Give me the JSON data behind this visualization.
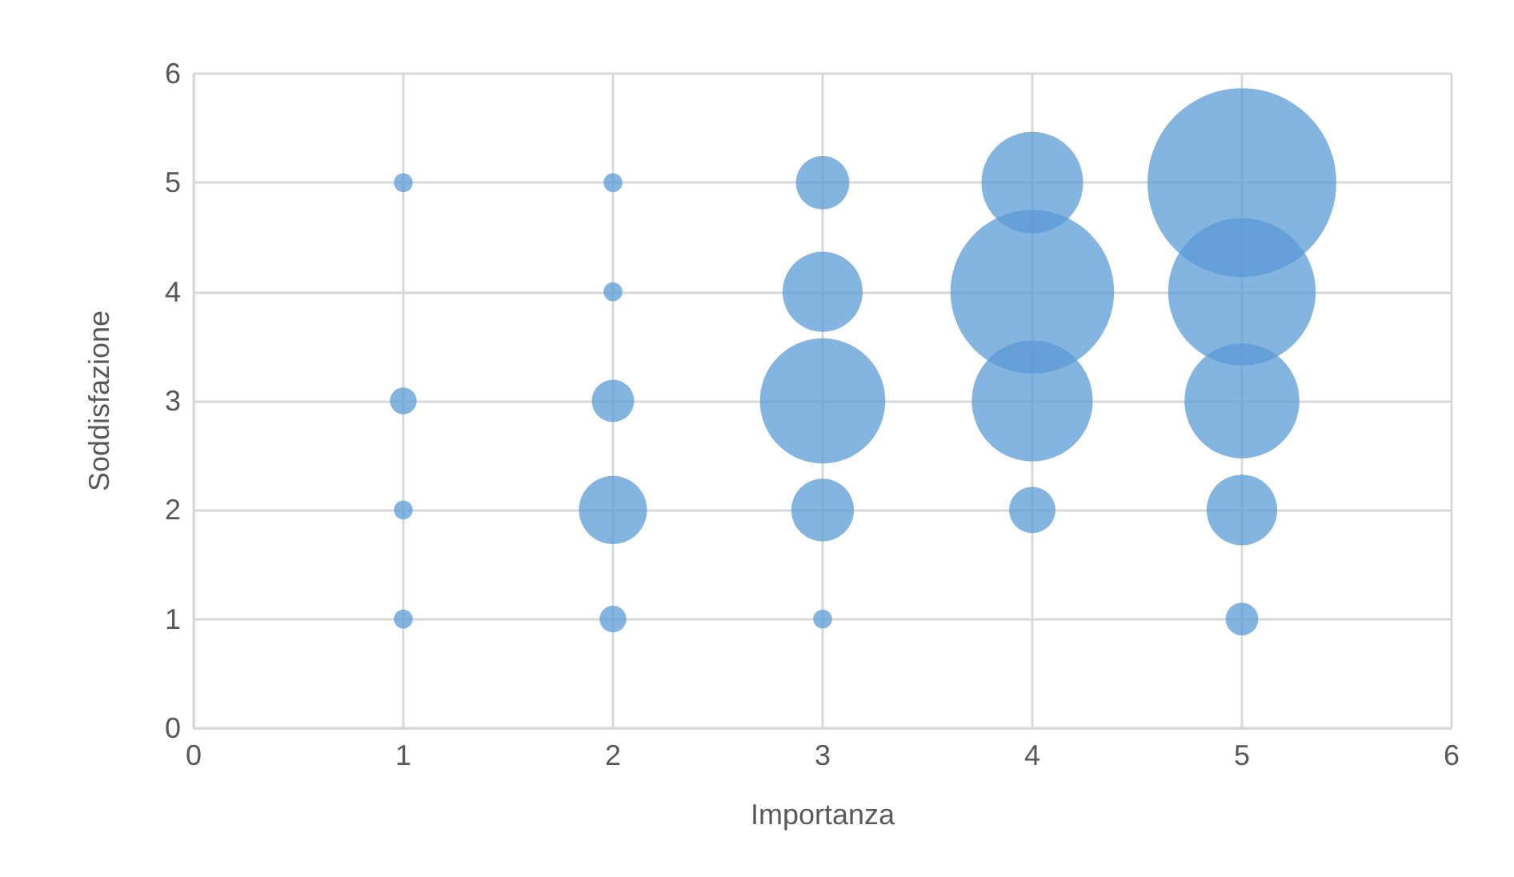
{
  "chart_data": {
    "type": "bubble",
    "xlabel": "Importanza",
    "ylabel": "Soddisfazione",
    "x": [
      1,
      1,
      1,
      1,
      2,
      2,
      2,
      2,
      2,
      3,
      3,
      3,
      3,
      3,
      4,
      4,
      4,
      4,
      5,
      5,
      5,
      5,
      5
    ],
    "values": [
      5,
      3,
      2,
      1,
      5,
      4,
      3,
      2,
      1,
      5,
      4,
      3,
      2,
      1,
      5,
      4,
      3,
      2,
      5,
      4,
      3,
      2,
      1
    ],
    "sizes": [
      0.01,
      0.02,
      0.01,
      0.01,
      0.01,
      0.01,
      0.05,
      0.13,
      0.02,
      0.08,
      0.18,
      0.44,
      0.11,
      0.01,
      0.29,
      0.75,
      0.41,
      0.06,
      1,
      0.61,
      0.37,
      0.14,
      0.03
    ],
    "color": "#5b9bd5",
    "xlim": [
      0,
      6
    ],
    "xticks": [
      0,
      1,
      2,
      3,
      4,
      5,
      6
    ],
    "ylim": [
      0,
      6
    ],
    "yticks": [
      0,
      1,
      2,
      3,
      4,
      5,
      6
    ],
    "grid": true
  }
}
